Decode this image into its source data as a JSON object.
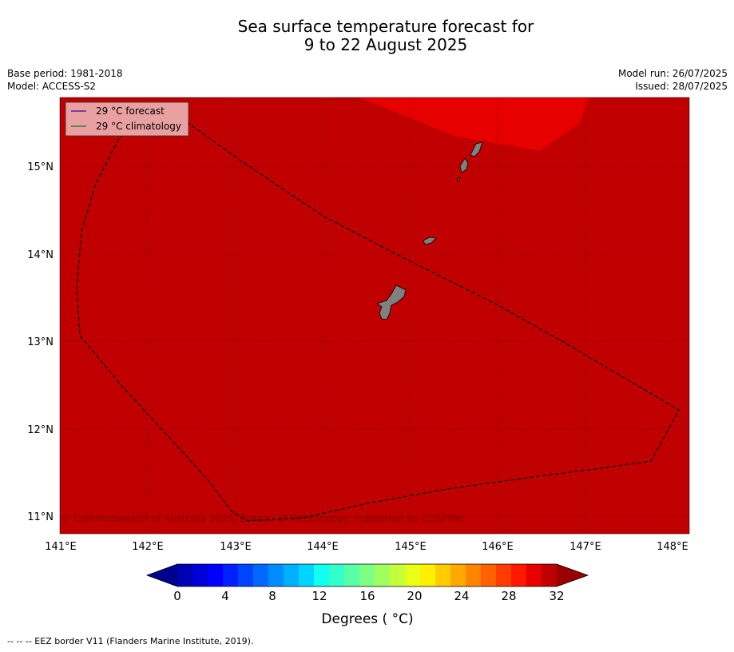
{
  "title": {
    "line1": "Sea surface temperature forecast for",
    "line2": "9 to 22 August 2025"
  },
  "meta": {
    "base_period": "Base period: 1981-2018",
    "model": "Model: ACCESS-S2",
    "model_run": "Model run: 26/07/2025",
    "issued": "Issued: 28/07/2025"
  },
  "map": {
    "longitude_labels": [
      "141°E",
      "142°E",
      "143°E",
      "144°E",
      "145°E",
      "146°E",
      "147°E",
      "148°E"
    ],
    "latitude_labels": [
      "15°N",
      "14°N",
      "13°N",
      "12°N",
      "11°N"
    ],
    "background_color": "#c00000",
    "warm_region_color": "#e60000",
    "land_color": "#808080",
    "legend": [
      {
        "label": "29 °C  forecast",
        "color": "#6a1b9a"
      },
      {
        "label": "29 °C  climatology",
        "color": "#2e7d32"
      }
    ],
    "copyright": "© Commonwealth of Australia 2025, Bureau of Meteorology, supported by COSPPac"
  },
  "colorbar": {
    "tick_labels": [
      "0",
      "4",
      "8",
      "12",
      "16",
      "20",
      "24",
      "28",
      "32"
    ],
    "label": "Degrees ( °C)",
    "colors": [
      "#00008f",
      "#0000b4",
      "#0000d9",
      "#0000ff",
      "#0020ff",
      "#0044ff",
      "#0068ff",
      "#008cff",
      "#00b0ff",
      "#00d4ff",
      "#10ffef",
      "#34ffcb",
      "#58ffa7",
      "#7cff83",
      "#a0ff5f",
      "#c4ff3b",
      "#e8ff17",
      "#fff000",
      "#ffcc00",
      "#ffa800",
      "#ff8400",
      "#ff6000",
      "#ff3c00",
      "#ff1800",
      "#e60000",
      "#c00000",
      "#9a0000"
    ]
  },
  "footer": "--  --  -- EEZ border V11 (Flanders Marine Institute, 2019)."
}
